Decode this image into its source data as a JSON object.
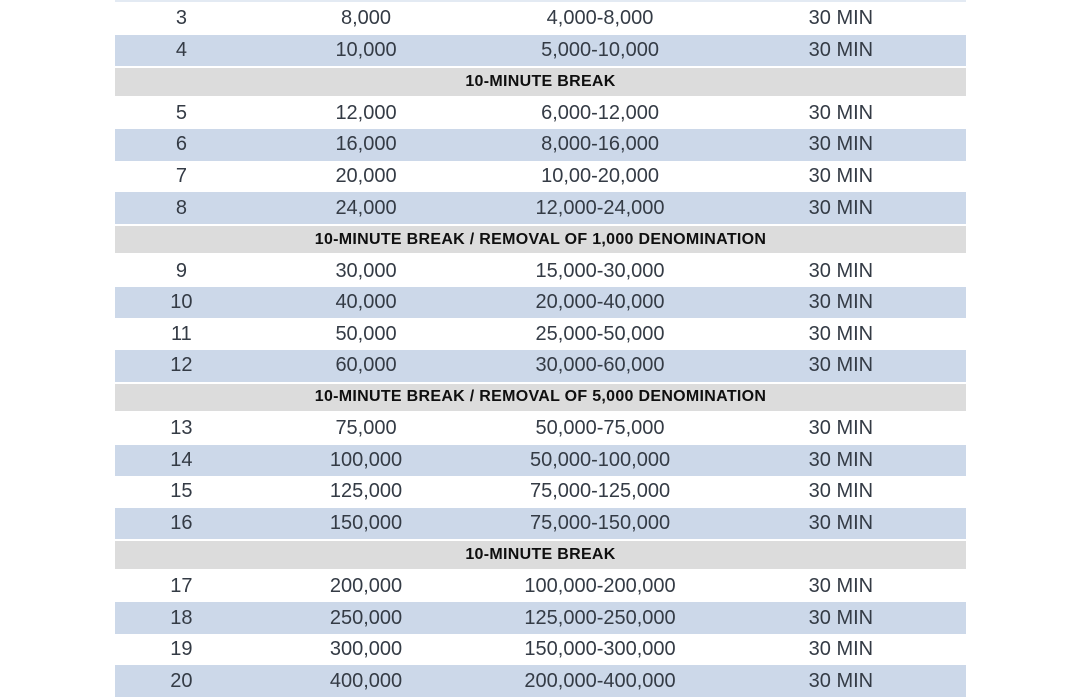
{
  "colors": {
    "row_alt": "#ccd8e9",
    "break_bg": "#dcdcdc",
    "text": "#343b45",
    "break_text": "#0f0f0f"
  },
  "chart_data": {
    "type": "table",
    "columns": [
      "level",
      "big_blind",
      "blinds",
      "duration"
    ],
    "note": "poker tournament blind structure, header cropped out of view"
  },
  "table": {
    "rows": [
      {
        "level": "3",
        "big_blind": "8,000",
        "blinds": "4,000-8,000",
        "duration": "30 MIN"
      },
      {
        "level": "4",
        "big_blind": "10,000",
        "blinds": "5,000-10,000",
        "duration": "30 MIN"
      },
      {
        "break": "10-MINUTE BREAK"
      },
      {
        "level": "5",
        "big_blind": "12,000",
        "blinds": "6,000-12,000",
        "duration": "30 MIN"
      },
      {
        "level": "6",
        "big_blind": "16,000",
        "blinds": "8,000-16,000",
        "duration": "30 MIN"
      },
      {
        "level": "7",
        "big_blind": "20,000",
        "blinds": "10,00-20,000",
        "duration": "30 MIN"
      },
      {
        "level": "8",
        "big_blind": "24,000",
        "blinds": "12,000-24,000",
        "duration": "30 MIN"
      },
      {
        "break": "10-MINUTE BREAK / REMOVAL OF 1,000 DENOMINATION"
      },
      {
        "level": "9",
        "big_blind": "30,000",
        "blinds": "15,000-30,000",
        "duration": "30 MIN"
      },
      {
        "level": "10",
        "big_blind": "40,000",
        "blinds": "20,000-40,000",
        "duration": "30 MIN"
      },
      {
        "level": "11",
        "big_blind": "50,000",
        "blinds": "25,000-50,000",
        "duration": "30 MIN"
      },
      {
        "level": "12",
        "big_blind": "60,000",
        "blinds": "30,000-60,000",
        "duration": "30 MIN"
      },
      {
        "break": "10-MINUTE BREAK / REMOVAL OF 5,000 DENOMINATION"
      },
      {
        "level": "13",
        "big_blind": "75,000",
        "blinds": "50,000-75,000",
        "duration": "30 MIN"
      },
      {
        "level": "14",
        "big_blind": "100,000",
        "blinds": "50,000-100,000",
        "duration": "30 MIN"
      },
      {
        "level": "15",
        "big_blind": "125,000",
        "blinds": "75,000-125,000",
        "duration": "30 MIN"
      },
      {
        "level": "16",
        "big_blind": "150,000",
        "blinds": "75,000-150,000",
        "duration": "30 MIN"
      },
      {
        "break": "10-MINUTE BREAK"
      },
      {
        "level": "17",
        "big_blind": "200,000",
        "blinds": "100,000-200,000",
        "duration": "30 MIN"
      },
      {
        "level": "18",
        "big_blind": "250,000",
        "blinds": "125,000-250,000",
        "duration": "30 MIN"
      },
      {
        "level": "19",
        "big_blind": "300,000",
        "blinds": "150,000-300,000",
        "duration": "30 MIN"
      },
      {
        "level": "20",
        "big_blind": "400,000",
        "blinds": "200,000-400,000",
        "duration": "30 MIN"
      }
    ]
  }
}
